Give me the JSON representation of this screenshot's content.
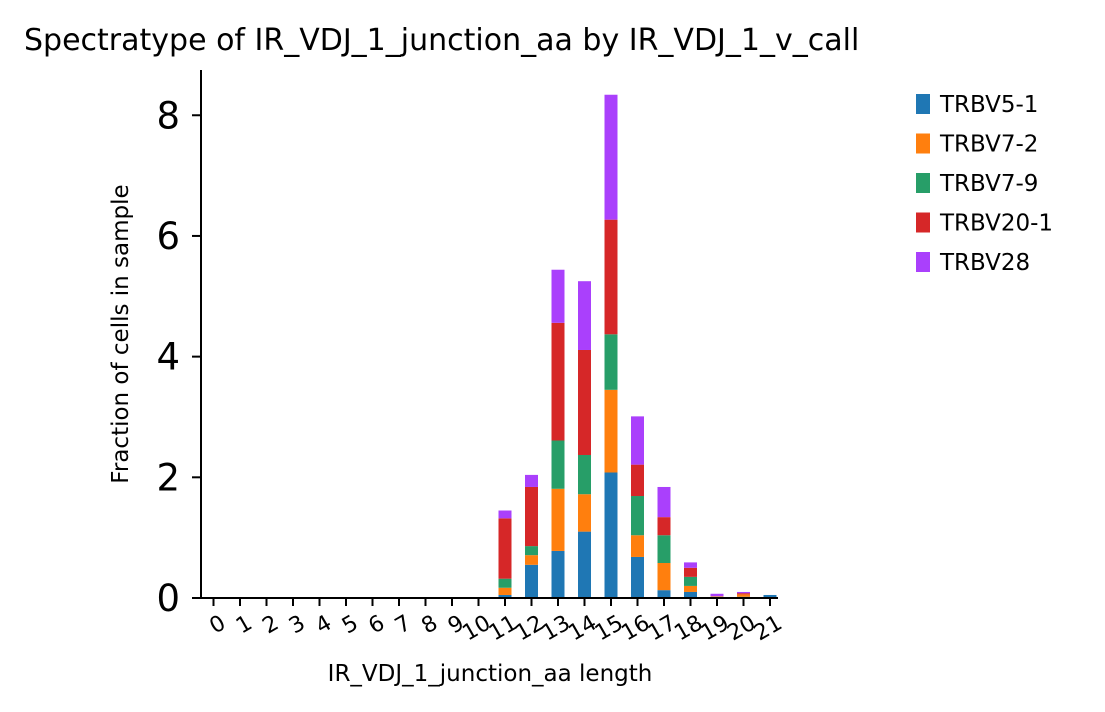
{
  "chart_data": {
    "type": "bar",
    "stacked": true,
    "title": "Spectratype of IR_VDJ_1_junction_aa by IR_VDJ_1_v_call",
    "xlabel": "IR_VDJ_1_junction_aa length",
    "ylabel": "Fraction of cells in sample",
    "ylim": [
      0,
      8.75
    ],
    "yticks": [
      0,
      2,
      4,
      6,
      8
    ],
    "categories": [
      "0",
      "1",
      "2",
      "3",
      "4",
      "5",
      "6",
      "7",
      "8",
      "9",
      "10",
      "11",
      "12",
      "13",
      "14",
      "15",
      "16",
      "17",
      "18",
      "19",
      "20",
      "21"
    ],
    "legend_position": "right",
    "series": [
      {
        "name": "TRBV5-1",
        "color": "#1f77b4",
        "values": [
          0,
          0,
          0,
          0,
          0,
          0,
          0,
          0,
          0,
          0,
          0,
          0.05,
          0.55,
          0.78,
          1.1,
          2.08,
          0.68,
          0.13,
          0.1,
          0.02,
          0.02,
          0.05
        ]
      },
      {
        "name": "TRBV7-2",
        "color": "#ff7f0e",
        "values": [
          0,
          0,
          0,
          0,
          0,
          0,
          0,
          0,
          0,
          0,
          0,
          0.12,
          0.16,
          1.03,
          0.62,
          1.37,
          0.36,
          0.45,
          0.1,
          0.01,
          0.04,
          0.0
        ]
      },
      {
        "name": "TRBV7-9",
        "color": "#279e68",
        "values": [
          0,
          0,
          0,
          0,
          0,
          0,
          0,
          0,
          0,
          0,
          0,
          0.15,
          0.15,
          0.8,
          0.65,
          0.92,
          0.65,
          0.46,
          0.15,
          0.0,
          0.0,
          0.0
        ]
      },
      {
        "name": "TRBV20-1",
        "color": "#d62728",
        "values": [
          0,
          0,
          0,
          0,
          0,
          0,
          0,
          0,
          0,
          0,
          0,
          1.0,
          0.98,
          1.95,
          1.74,
          1.9,
          0.52,
          0.3,
          0.15,
          0.0,
          0.02,
          0.0
        ]
      },
      {
        "name": "TRBV28",
        "color": "#aa40fc",
        "values": [
          0,
          0,
          0,
          0,
          0,
          0,
          0,
          0,
          0,
          0,
          0,
          0.13,
          0.2,
          0.88,
          1.14,
          2.07,
          0.8,
          0.5,
          0.09,
          0.04,
          0.02,
          0.0
        ]
      }
    ]
  }
}
